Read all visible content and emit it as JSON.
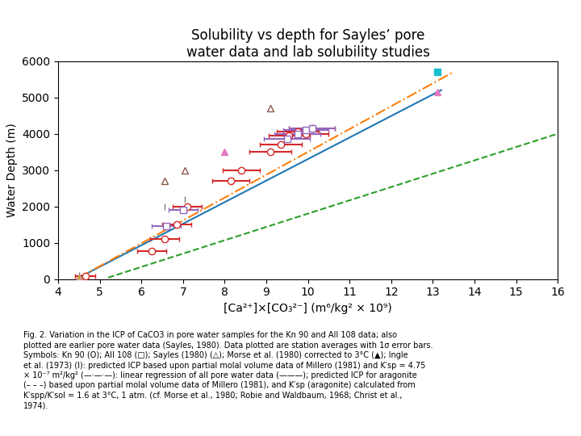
{
  "chart_data": {
    "type": "scatter",
    "title": "Solubility vs depth for Sayles’ pore\nwater data and lab solubility studies",
    "xlabel": "[Ca²⁺]×[CO₃²⁻] (m⁶/kg² × 10⁹)",
    "ylabel": "Water Depth (m)",
    "annotations": [
      "Fig. 2. Variation in the ICP of CaCO3 in pore water samples for the Kn 90 and AII 108 data; also\nplotted are earlier pore water data (Sayles, 1980). Data plotted are station averages with 1σ error bars.\nSymbols: Kn 90 (O); AII 108 (□); Sayles (1980) (△); Morse et al. (1980) corrected to 3°C (▲); Ingle\net al. (1973) (I): predicted ICP based upon partial molal volume data of Millero (1981) and K′sp = 4.75\n× 10⁻⁷ m²/kg² (—·—·—): linear regression of all pore water data (———); predicted ICP for aragonite\n(– – –) based upon partial molal volume data of Millero (1981), and K′sp (aragonite) calculated from\nK′spp/K′sol = 1.6 at 3°C, 1 atm. (cf. Morse et al., 1980; Robie and Waldbaum, 1968; Christ et al.,\n1974)."
    ],
    "xlim": [
      4,
      16
    ],
    "ylim": [
      0,
      6000
    ],
    "xticks": [
      4,
      5,
      6,
      7,
      8,
      9,
      10,
      11,
      12,
      13,
      14,
      15,
      16
    ],
    "yticks": [
      0,
      1000,
      2000,
      3000,
      4000,
      5000,
      6000
    ],
    "grid": false,
    "series": [
      {
        "type": "line",
        "line_style": "solid",
        "x": [
          4.5,
          13.2
        ],
        "values": [
          40,
          5200
        ]
      },
      {
        "type": "line",
        "line_style": "dashdot",
        "x": [
          4.5,
          13.5
        ],
        "values": [
          40,
          5700
        ]
      },
      {
        "type": "line",
        "line_style": "dashed",
        "x": [
          5.2,
          16.0
        ],
        "values": [
          40,
          4000
        ]
      },
      {
        "type": "scatter",
        "marker": "circle_open",
        "x": [
          4.65,
          6.25,
          6.55,
          6.85,
          7.1,
          8.15,
          8.4,
          9.1,
          9.35,
          9.55,
          9.75,
          9.95,
          10.1
        ],
        "values": [
          80,
          780,
          1100,
          1500,
          2000,
          2700,
          3000,
          3500,
          3700,
          3950,
          4050,
          4000,
          4150
        ],
        "xerr": [
          0.25,
          0.35,
          0.35,
          0.35,
          0.35,
          0.45,
          0.45,
          0.5,
          0.5,
          0.5,
          0.5,
          0.55,
          0.55
        ]
      },
      {
        "type": "scatter",
        "marker": "square_open",
        "x": [
          6.6,
          7.0,
          9.5,
          9.75,
          9.95,
          10.1
        ],
        "values": [
          1450,
          1900,
          3850,
          4000,
          4100,
          4150
        ],
        "xerr": [
          0.35,
          0.35,
          0.55,
          0.55,
          0.55,
          0.55
        ]
      },
      {
        "type": "scatter",
        "marker": "triangle_open",
        "x": [
          4.55,
          6.55,
          7.05,
          9.1
        ],
        "values": [
          40,
          2700,
          3000,
          4700
        ]
      },
      {
        "type": "scatter",
        "marker": "triangle_filled",
        "x": [
          4.5,
          8.0,
          13.1
        ],
        "values": [
          40,
          3500,
          5150
        ]
      },
      {
        "type": "scatter",
        "marker": "vline",
        "x": [
          4.5,
          6.55,
          7.05
        ],
        "values": [
          100,
          2000,
          2200
        ]
      },
      {
        "type": "scatter",
        "marker": "plus",
        "x": [
          4.5
        ],
        "values": [
          40
        ]
      },
      {
        "type": "scatter",
        "marker": "square_filled",
        "x": [
          13.1
        ],
        "values": [
          5700
        ]
      }
    ]
  }
}
